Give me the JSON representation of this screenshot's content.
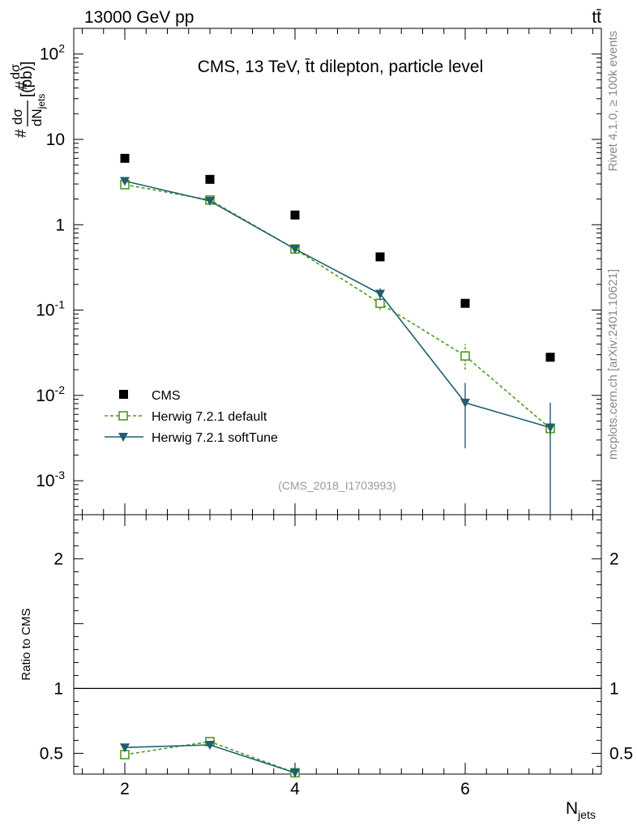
{
  "header": {
    "left": "13000 GeV pp",
    "right": "tt̄"
  },
  "side_labels": {
    "rivet": "Rivet 4.1.0, ≥ 100k events",
    "mcplots": "mcplots.cern.ch [arXiv:2401.10621]"
  },
  "chart_data": [
    {
      "type": "scatter",
      "panel": "main",
      "title": "CMS, 13 TeV, t̄t dilepton, particle level",
      "analysis_tag": "(CMS_2018_I1703993)",
      "xlabel": "N_jets",
      "ylabel": "# dσ/dN_jets [(pb)]",
      "yscale": "log",
      "xlim": [
        1.4,
        7.6
      ],
      "ylim": [
        0.0004,
        200
      ],
      "y_tick_labels": [
        "10^-3",
        "10^-2",
        "10^-1",
        "1",
        "10",
        "10^2"
      ],
      "x_tick_labels": [
        "2",
        "4",
        "6"
      ],
      "x": [
        2,
        3,
        4,
        5,
        6,
        7
      ],
      "series": [
        {
          "name": "CMS",
          "color": "#000000",
          "marker": "filled-square",
          "values": [
            6.0,
            3.4,
            1.3,
            0.42,
            0.12,
            0.028
          ]
        },
        {
          "name": "Herwig 7.2.1 default",
          "color": "#4c9a1d",
          "marker": "open-square",
          "line": "dashed",
          "values": [
            2.95,
            1.95,
            0.52,
            0.12,
            0.029,
            0.0041
          ],
          "err_low": [
            2.75,
            1.82,
            0.49,
            0.1,
            0.02,
            0.0034
          ],
          "err_high": [
            3.15,
            2.08,
            0.55,
            0.14,
            0.04,
            0.0048
          ]
        },
        {
          "name": "Herwig 7.2.1 softTune",
          "color": "#1f5f70",
          "marker": "filled-triangle-down",
          "line": "solid",
          "values": [
            3.25,
            1.9,
            0.52,
            0.155,
            0.0082,
            0.0042
          ],
          "err_low": [
            3.05,
            1.78,
            0.49,
            0.13,
            0.0024,
            0.0003
          ],
          "err_high": [
            3.45,
            2.02,
            0.55,
            0.18,
            0.014,
            0.0082
          ]
        }
      ]
    },
    {
      "type": "line",
      "panel": "ratio",
      "ylabel": "Ratio to CMS",
      "xlabel": "N_jets",
      "xlim": [
        1.4,
        7.6
      ],
      "ylim": [
        0.34,
        2.34
      ],
      "y_tick_labels": [
        "0.5",
        "1",
        "2"
      ],
      "x_tick_labels": [
        "2",
        "4",
        "6"
      ],
      "reference": 1,
      "x": [
        2,
        3,
        4
      ],
      "series": [
        {
          "name": "Herwig 7.2.1 default",
          "color": "#4c9a1d",
          "line": "dashed",
          "values": [
            0.49,
            0.59,
            0.35
          ],
          "err_low": [
            0.47,
            0.565,
            0.33
          ],
          "err_high": [
            0.51,
            0.615,
            0.38
          ]
        },
        {
          "name": "Herwig 7.2.1 softTune",
          "color": "#1f5f70",
          "line": "solid",
          "values": [
            0.545,
            0.565,
            0.35
          ],
          "err_low": [
            0.525,
            0.535,
            0.32
          ],
          "err_high": [
            0.565,
            0.595,
            0.4
          ]
        }
      ]
    }
  ]
}
